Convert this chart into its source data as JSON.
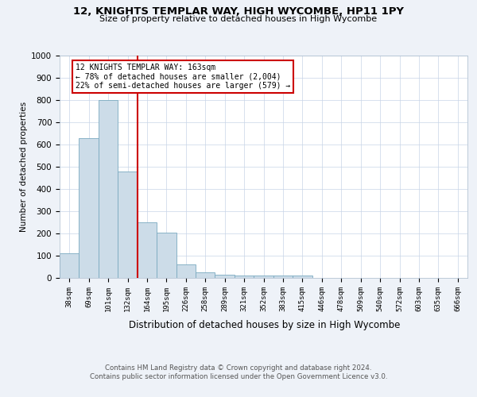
{
  "title": "12, KNIGHTS TEMPLAR WAY, HIGH WYCOMBE, HP11 1PY",
  "subtitle": "Size of property relative to detached houses in High Wycombe",
  "xlabel": "Distribution of detached houses by size in High Wycombe",
  "ylabel": "Number of detached properties",
  "bin_labels": [
    "38sqm",
    "69sqm",
    "101sqm",
    "132sqm",
    "164sqm",
    "195sqm",
    "226sqm",
    "258sqm",
    "289sqm",
    "321sqm",
    "352sqm",
    "383sqm",
    "415sqm",
    "446sqm",
    "478sqm",
    "509sqm",
    "540sqm",
    "572sqm",
    "603sqm",
    "635sqm",
    "666sqm"
  ],
  "bar_values": [
    110,
    630,
    800,
    480,
    250,
    205,
    60,
    25,
    15,
    10,
    10,
    10,
    10,
    0,
    0,
    0,
    0,
    0,
    0,
    0,
    0
  ],
  "bar_color": "#ccdce8",
  "bar_edge_color": "#7aaac0",
  "vline_x": 3.5,
  "vline_color": "#cc0000",
  "annotation_text": "12 KNIGHTS TEMPLAR WAY: 163sqm\n← 78% of detached houses are smaller (2,004)\n22% of semi-detached houses are larger (579) →",
  "annotation_box_edgecolor": "#cc0000",
  "ylim": [
    0,
    1000
  ],
  "yticks": [
    0,
    100,
    200,
    300,
    400,
    500,
    600,
    700,
    800,
    900,
    1000
  ],
  "footer_line1": "Contains HM Land Registry data © Crown copyright and database right 2024.",
  "footer_line2": "Contains public sector information licensed under the Open Government Licence v3.0.",
  "fig_bg_color": "#eef2f8",
  "plot_bg_color": "#ffffff",
  "grid_color": "#c8d4e8"
}
